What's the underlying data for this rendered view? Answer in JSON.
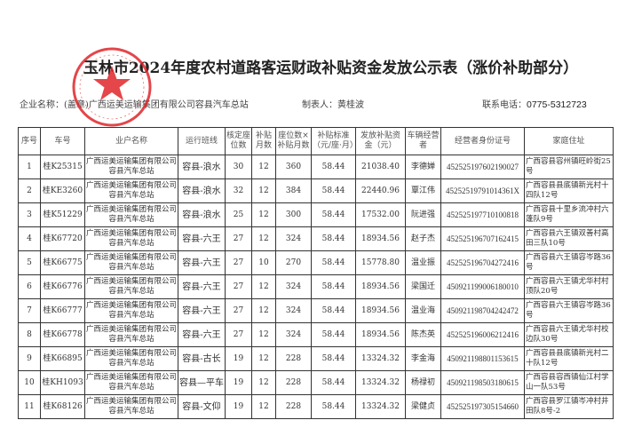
{
  "title": "玉林市2024年度农村道路客运财政补贴资金发放公示表（涨价补助部分）",
  "enterprise_label": "企业名称：(盖章)",
  "enterprise_name": "广西运美运输集团有限公司容县汽车总站",
  "preparer_label": "制表人：",
  "preparer": "黄桂波",
  "phone_label": "联系电话：",
  "phone": "0775-5312723",
  "stamp": {
    "outer_text": "广西运美运输集团有限公司",
    "inner_text": "容县汽车总站",
    "number": "4509211822003",
    "color": "#e0262b"
  },
  "headers": [
    "序号",
    "车号",
    "业户名称",
    "运行班线",
    "核定座位数",
    "补贴月数",
    "座位数×补贴月数",
    "补贴标准（元/座·月）",
    "发放补贴资金（元）",
    "车辆经营者",
    "经营者身份证号",
    "家庭住址"
  ],
  "rows": [
    [
      "1",
      "桂K25315",
      "广西运美运输集团有限公司容县汽车总站",
      "容县-浪水",
      "30",
      "12",
      "360",
      "58.44",
      "21038.40",
      "李德婵",
      "452525197602190027",
      "广西容县容州镇旺岭街25号"
    ],
    [
      "2",
      "桂KE3260",
      "广西运美运输集团有限公司容县汽车总站",
      "容县-浪水",
      "32",
      "12",
      "384",
      "58.44",
      "22440.96",
      "覃江伟",
      "45252519791014361X",
      "广西容县县底镇新光村十四队12号"
    ],
    [
      "3",
      "桂K51229",
      "广西运美运输集团有限公司容县汽车总站",
      "容县-浪水",
      "25",
      "12",
      "300",
      "58.44",
      "17532.00",
      "阮进强",
      "452525197710100818",
      "广西容县十里乡流冲村六蓬队9号"
    ],
    [
      "4",
      "桂K67720",
      "广西运美运输集团有限公司容县汽车总站",
      "容县-六王",
      "27",
      "12",
      "324",
      "58.44",
      "18934.56",
      "赵子杰",
      "452525196707162415",
      "广西容县六王镇双善村高田三队10号"
    ],
    [
      "5",
      "桂K66775",
      "广西运美运输集团有限公司容县汽车总站",
      "容县-六王",
      "27",
      "10",
      "270",
      "58.44",
      "15778.80",
      "温业振",
      "452525196704272416",
      "广西容县六王镇容岑路36号"
    ],
    [
      "6",
      "桂K66776",
      "广西运美运输集团有限公司容县汽车总站",
      "容县-六王",
      "27",
      "12",
      "324",
      "58.44",
      "18934.56",
      "梁国迁",
      "450921199006180010",
      "广西容县六王镇尤华村村顶队20号"
    ],
    [
      "7",
      "桂K66777",
      "广西运美运输集团有限公司容县汽车总站",
      "容县-六王",
      "27",
      "12",
      "324",
      "58.44",
      "18934.56",
      "温业海",
      "450921198704242472",
      "广西容县六王镇容岑路36号"
    ],
    [
      "8",
      "桂K66778",
      "广西运美运输集团有限公司容县汽车总站",
      "容县-六王",
      "27",
      "12",
      "324",
      "58.44",
      "18934.56",
      "陈杰英",
      "452525196006212416",
      "广西容县六王镇尤华村校边队30号"
    ],
    [
      "9",
      "桂K66895",
      "广西运美运输集团有限公司容县汽车总站",
      "容县-古长",
      "19",
      "12",
      "228",
      "58.44",
      "13324.32",
      "李金海",
      "450921198801153615",
      "广西容县县底镇新光村二十队12号"
    ],
    [
      "10",
      "桂KH1093",
      "广西运美运输集团有限公司容县汽车总站",
      "容县—平车",
      "19",
      "12",
      "228",
      "58.44",
      "13324.32",
      "杨禄初",
      "450921198503180615",
      "广西容县容西镇仙江村学山一队53号"
    ],
    [
      "11",
      "桂K68126",
      "广西运美运输集团有限公司容县汽车总站",
      "容县-文仰",
      "19",
      "12",
      "228",
      "58.44",
      "13324.32",
      "梁健贞",
      "452525197305154660",
      "广西容县罗江镇岑冲村井田队8号-2"
    ]
  ]
}
